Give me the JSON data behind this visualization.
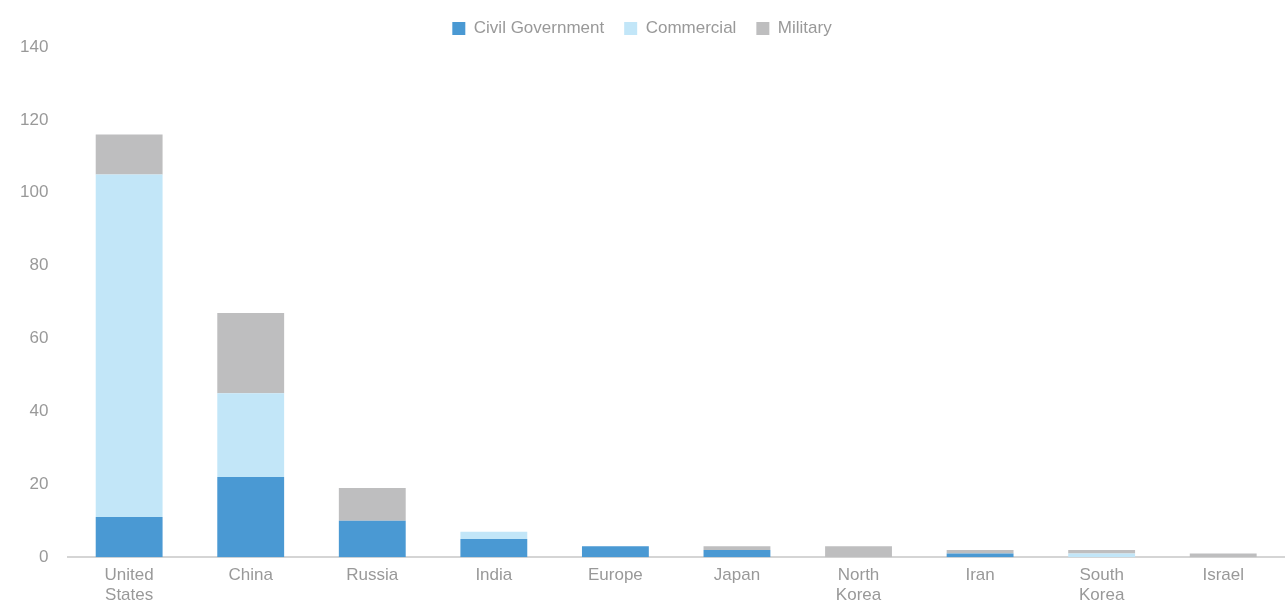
{
  "chart_data": {
    "type": "bar",
    "stacked": true,
    "categories": [
      "United States",
      "China",
      "Russia",
      "India",
      "Europe",
      "Japan",
      "North Korea",
      "Iran",
      "South Korea",
      "Israel"
    ],
    "series": [
      {
        "name": "Civil Government",
        "color": "#4a99d3",
        "values": [
          11,
          22,
          10,
          5,
          3,
          2,
          0,
          1,
          0,
          0
        ]
      },
      {
        "name": "Commercial",
        "color": "#c2e6f8",
        "values": [
          94,
          23,
          0,
          2,
          0,
          0,
          0,
          0,
          1,
          0
        ]
      },
      {
        "name": "Military",
        "color": "#bebebf",
        "values": [
          11,
          22,
          9,
          0,
          0,
          1,
          3,
          1,
          1,
          1
        ]
      }
    ],
    "ylim": [
      0,
      140
    ],
    "yticks": [
      0,
      20,
      40,
      60,
      80,
      100,
      120,
      140
    ],
    "grid": false,
    "legend": "top"
  }
}
